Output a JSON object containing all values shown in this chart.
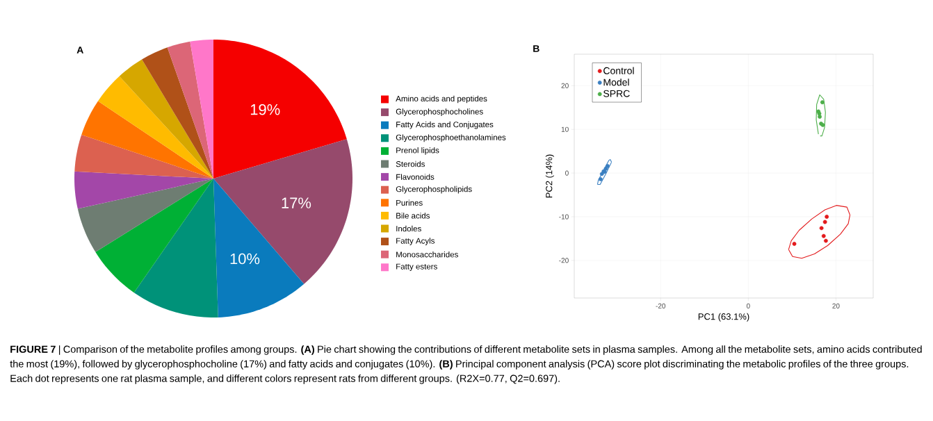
{
  "chart_data": [
    {
      "type": "pie",
      "annotations": [
        "A"
      ],
      "legend": "right",
      "categories": [
        "Amino acids and peptides",
        "Glycerophosphocholines",
        "Fatty Acids and Conjugates",
        "Glycerophosphoethanolamines",
        "Prenol lipids",
        "Steroids",
        "Flavonoids",
        "Glycerophospholipids",
        "Purines",
        "Bile acids",
        "Indoles",
        "Fatty Acyls",
        "Monosaccharides",
        "Fatty esters"
      ],
      "values": [
        19,
        17,
        10,
        9.5,
        6,
        5,
        4,
        4,
        4,
        3.5,
        3,
        3,
        2.5,
        2.5
      ],
      "value_labels": [
        "19%",
        "17%",
        "10%",
        null,
        null,
        null,
        null,
        null,
        null,
        null,
        null,
        null,
        null,
        null
      ],
      "colors": [
        "#f50000",
        "#964a6c",
        "#0a7bbd",
        "#009279",
        "#00b035",
        "#6e7d72",
        "#a347a8",
        "#dc6150",
        "#ff7400",
        "#ffbb00",
        "#d6a700",
        "#b05118",
        "#dc6677",
        "#ff77c9"
      ]
    },
    {
      "type": "scatter",
      "annotations": [
        "B",
        "**FIGURE 7** | Comparison of the metabolite profiles among groups. **(A)** Pie chart showing the contributions of different metabolite sets in plasma samples. Among all the metabolite sets, amino acids contributed the most (19%), followed by glycerophosphocholine (17%) and fatty acids and conjugates (10%). **(B)** Principal component analysis (PCA) score plot discriminating the metabolic profiles of the three groups. Each dot represents one rat plasma sample, and different colors represent rats from different groups. (R2X=0.77, Q2=0.697)."
      ],
      "xlabel": "PC1 (63.1%)",
      "ylabel": "PC2 (14%)",
      "xlim": [
        -39.7,
        28.5
      ],
      "ylim": [
        -28.6,
        27.2
      ],
      "xticks": [
        -20,
        0,
        20
      ],
      "yticks": [
        -20,
        -10,
        0,
        10,
        20
      ],
      "grid": true,
      "legend": "top left",
      "marker": "circle",
      "series": [
        {
          "name": "Control",
          "color": "#e31a1c",
          "x": [
            17.9,
            17.5,
            16.7,
            17.2,
            17.7,
            10.5
          ],
          "values": [
            -10,
            -11.2,
            -12.6,
            -14.4,
            -15.5,
            -16.2
          ]
        },
        {
          "name": "Model",
          "color": "#3a7fc1",
          "x": [
            -33.4,
            -33.0,
            -32.5,
            -32.1,
            -33.7,
            -32.8
          ],
          "values": [
            -0.2,
            0.4,
            1.0,
            1.6,
            -1.4,
            0.3
          ]
        },
        {
          "name": "SPRC",
          "color": "#4daf4a",
          "x": [
            16.9,
            16.0,
            16.2,
            16.3,
            16.6,
            17.0
          ],
          "values": [
            16.2,
            14.1,
            13.6,
            12.9,
            11.3,
            11.0
          ]
        },
        {
          "type": "line",
          "marker": "none",
          "color": "#e31a1c",
          "x": [
            9.2,
            9.8,
            11.6,
            14.5,
            17.5,
            20.1,
            22.5,
            23.2
          ],
          "values": [
            -17.5,
            -15.5,
            -13.1,
            -10.5,
            -8.4,
            -7.4,
            -7.8,
            -9.6
          ]
        },
        {
          "type": "line",
          "marker": "none",
          "color": "#e31a1c",
          "x": [
            9.2,
            10.1,
            12.2,
            15.1,
            18.1,
            21.0,
            22.8,
            23.2
          ],
          "values": [
            -17.5,
            -19.1,
            -19.5,
            -18.5,
            -16.6,
            -14.0,
            -11.6,
            -9.6
          ]
        },
        {
          "type": "line",
          "marker": "none",
          "color": "#3a7fc1",
          "x": [
            -34.4,
            -34.2,
            -32.8,
            -31.8,
            -31.5,
            -31.2
          ],
          "values": [
            -2.6,
            -1.6,
            1.0,
            2.9,
            3.1,
            2.5
          ]
        },
        {
          "type": "line",
          "marker": "none",
          "color": "#3a7fc1",
          "x": [
            -34.4,
            -33.8,
            -32.5,
            -31.2
          ],
          "values": [
            -2.6,
            -2.6,
            -0.2,
            2.5
          ]
        },
        {
          "type": "line",
          "marker": "none",
          "color": "#4daf4a",
          "x": [
            16.4,
            16.8,
            17.4,
            17.6,
            17.2,
            16.3,
            15.6,
            15.5,
            16.0
          ],
          "values": [
            8.5,
            8.5,
            10.4,
            13.9,
            16.9,
            17.9,
            15.7,
            12.2,
            8.9
          ]
        }
      ]
    }
  ]
}
